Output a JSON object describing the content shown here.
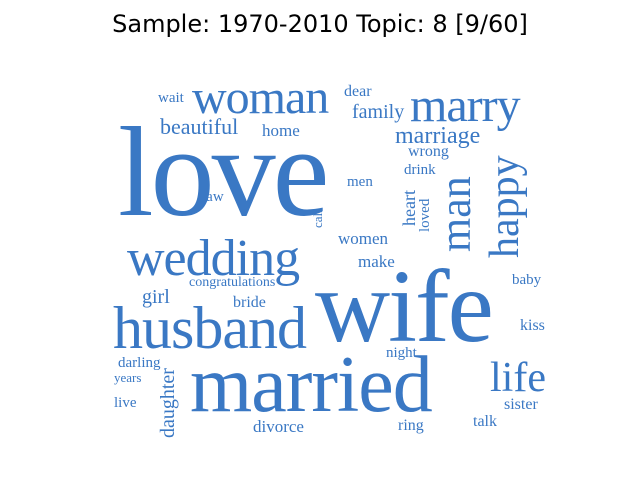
{
  "title": "Sample: 1970-2010 Topic: 8 [9/60]",
  "word_color": "#3a78c4",
  "words": {
    "love": "love",
    "wife": "wife",
    "married": "married",
    "husband": "husband",
    "wedding": "wedding",
    "woman": "woman",
    "marry": "marry",
    "man": "man",
    "happy": "happy",
    "life": "life",
    "marriage": "marriage",
    "beautiful": "beautiful",
    "family": "family",
    "home": "home",
    "wait": "wait",
    "dear": "dear",
    "wrong": "wrong",
    "drink": "drink",
    "men": "men",
    "law": "law",
    "heart": "heart",
    "loved": "loved",
    "call": "call",
    "women": "women",
    "make": "make",
    "congratulations": "congratulations",
    "girl": "girl",
    "bride": "bride",
    "baby": "baby",
    "kiss": "kiss",
    "night": "night",
    "darling": "darling",
    "years": "years",
    "daughter": "daughter",
    "live": "live",
    "divorce": "divorce",
    "ring": "ring",
    "talk": "talk",
    "sister": "sister"
  }
}
